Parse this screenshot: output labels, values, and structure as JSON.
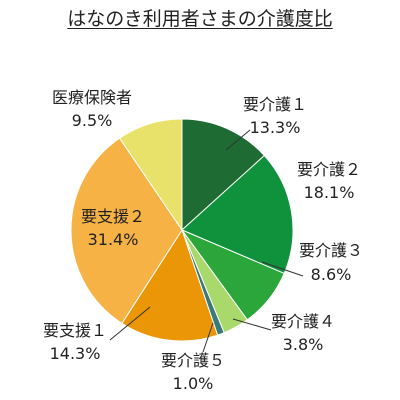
{
  "chart_data": {
    "type": "pie",
    "title": "はなのき利用者さまの介護度比",
    "start_angle_deg": 0,
    "direction": "clockwise",
    "slices": [
      {
        "label": "要介護１",
        "value": 13.3,
        "value_text": "13.3%",
        "color": "#1e6b34"
      },
      {
        "label": "要介護２",
        "value": 18.1,
        "value_text": "18.1%",
        "color": "#10913c"
      },
      {
        "label": "要介護３",
        "value": 8.6,
        "value_text": "8.6%",
        "color": "#2aa63a"
      },
      {
        "label": "要介護４",
        "value": 3.8,
        "value_text": "3.8%",
        "color": "#a8d96a"
      },
      {
        "label": "要介護５",
        "value": 1.0,
        "value_text": "1.0%",
        "color": "#3a7a78"
      },
      {
        "label": "要支援１",
        "value": 14.3,
        "value_text": "14.3%",
        "color": "#ea9606"
      },
      {
        "label": "要支援２",
        "value": 31.4,
        "value_text": "31.4%",
        "color": "#f6b244"
      },
      {
        "label": "医療保険者",
        "value": 9.5,
        "value_text": "9.5%",
        "color": "#e8e26a"
      }
    ]
  }
}
